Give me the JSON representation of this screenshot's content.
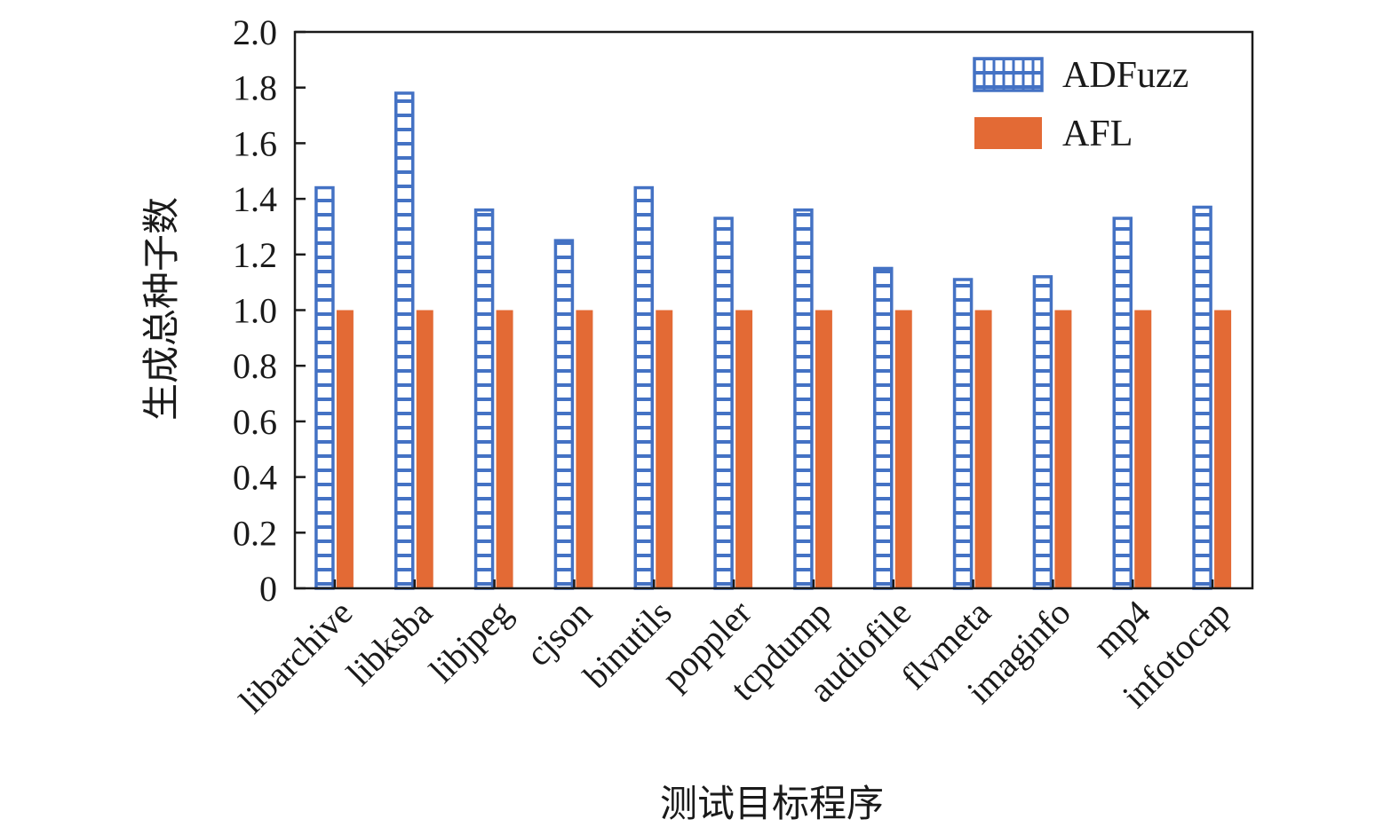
{
  "chart_data": {
    "type": "bar",
    "title": "",
    "xlabel": "测试目标程序",
    "ylabel": "生成总种子数",
    "ylim": [
      0,
      2.0
    ],
    "yticks": [
      "0",
      "0.2",
      "0.4",
      "0.6",
      "0.8",
      "1.0",
      "1.2",
      "1.4",
      "1.6",
      "1.8",
      "2.0"
    ],
    "grid": false,
    "legend_position": "top-right",
    "categories": [
      "libarchive",
      "libksba",
      "libjpeg",
      "cjson",
      "binutils",
      "poppler",
      "tcpdump",
      "audiofile",
      "flvmeta",
      "imaginfo",
      "mp4",
      "infotocap"
    ],
    "series": [
      {
        "name": "ADFuzz",
        "style": "hatched",
        "color": "#4472C4",
        "values": [
          1.44,
          1.78,
          1.36,
          1.25,
          1.44,
          1.33,
          1.36,
          1.15,
          1.11,
          1.12,
          1.33,
          1.37
        ]
      },
      {
        "name": "AFL",
        "style": "solid",
        "color": "#E36A35",
        "values": [
          1.0,
          1.0,
          1.0,
          1.0,
          1.0,
          1.0,
          1.0,
          1.0,
          1.0,
          1.0,
          1.0,
          1.0
        ]
      }
    ]
  }
}
